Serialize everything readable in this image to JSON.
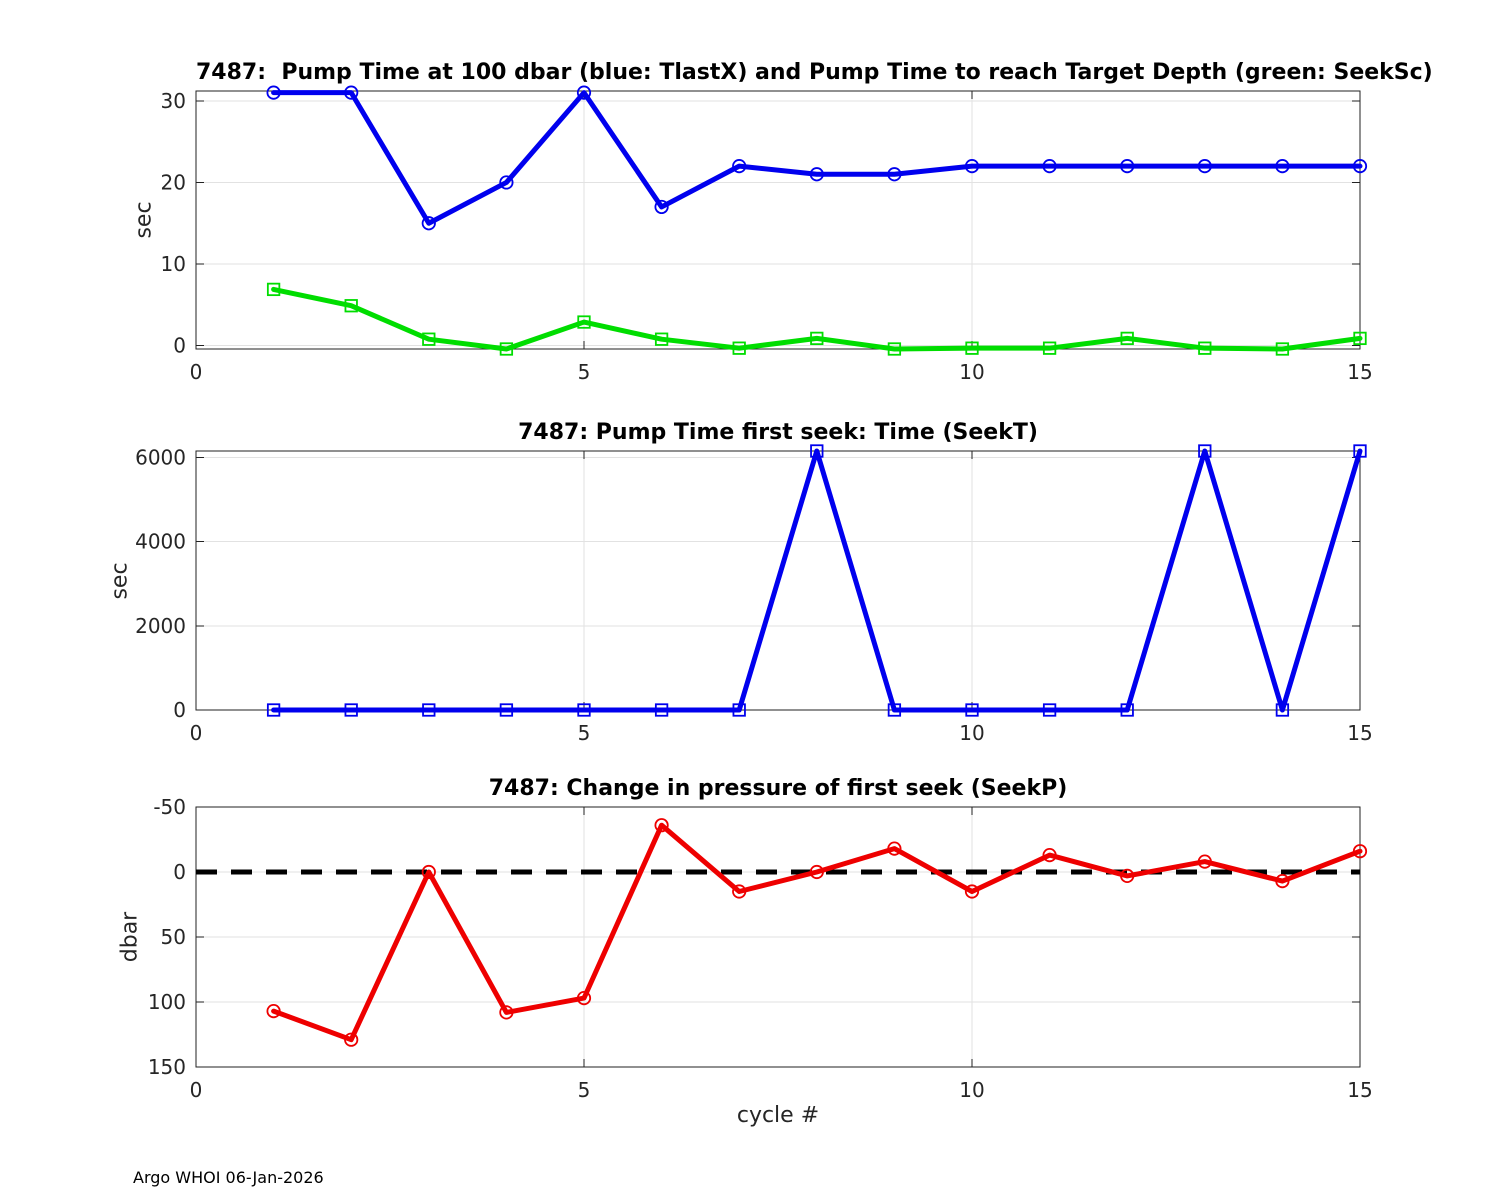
{
  "figure": {
    "xlabel": "cycle #",
    "footer": "Argo WHOI 06-Jan-2026",
    "background": "#ffffff",
    "axis_color": "#222222",
    "grid_color": "#e2e2e2",
    "tick_label_color": "#262626"
  },
  "chart_data": [
    {
      "type": "line",
      "title": "7487:  Pump Time at 100 dbar (blue: TlastX) and Pump Time to reach Target Depth (green: SeekSc)",
      "ylabel": "sec",
      "x": [
        1,
        2,
        3,
        4,
        5,
        6,
        7,
        8,
        9,
        10,
        11,
        12,
        13,
        14,
        15
      ],
      "series": [
        {
          "name": "TlastX",
          "color": "#0000ee",
          "marker": "circle",
          "values": [
            31,
            31,
            15,
            20,
            31,
            17,
            22,
            21,
            21,
            22,
            22,
            22,
            22,
            22,
            22
          ]
        },
        {
          "name": "SeekSc",
          "color": "#00dd00",
          "marker": "square",
          "values": [
            6.9,
            4.9,
            0.8,
            -0.4,
            2.9,
            0.8,
            -0.3,
            0.9,
            -0.4,
            -0.3,
            -0.3,
            0.9,
            -0.3,
            -0.4,
            0.9
          ]
        }
      ],
      "xlim": [
        0,
        15
      ],
      "ylim": [
        -0.4,
        31.2
      ],
      "xticks": [
        0,
        5,
        10,
        15
      ],
      "yticks": [
        0,
        10,
        20,
        30
      ],
      "grid": true,
      "legend": "none"
    },
    {
      "type": "line",
      "title": "7487: Pump Time first seek: Time (SeekT)",
      "ylabel": "sec",
      "x": [
        1,
        2,
        3,
        4,
        5,
        6,
        7,
        8,
        9,
        10,
        11,
        12,
        13,
        14,
        15
      ],
      "series": [
        {
          "name": "SeekT",
          "color": "#0000ee",
          "marker": "square",
          "values": [
            0,
            0,
            0,
            0,
            0,
            0,
            0,
            6150,
            0,
            0,
            0,
            0,
            6150,
            0,
            6150
          ]
        }
      ],
      "xlim": [
        0,
        15
      ],
      "ylim": [
        0,
        6150
      ],
      "xticks": [
        0,
        5,
        10,
        15
      ],
      "yticks": [
        0,
        2000,
        4000,
        6000
      ],
      "grid": true,
      "legend": "none"
    },
    {
      "type": "line",
      "title": "7487: Change in pressure of first seek (SeekP)",
      "ylabel": "dbar",
      "x": [
        1,
        2,
        3,
        4,
        5,
        6,
        7,
        8,
        9,
        10,
        11,
        12,
        13,
        14,
        15
      ],
      "series": [
        {
          "name": "SeekP",
          "color": "#ee0000",
          "marker": "circle",
          "values": [
            107,
            129,
            0,
            108,
            97,
            -36,
            15,
            0,
            -18,
            15,
            -13,
            3,
            -8,
            7,
            -16
          ]
        }
      ],
      "xlim": [
        0,
        15
      ],
      "ylim": [
        -50,
        150
      ],
      "y_reversed": true,
      "xticks": [
        0,
        5,
        10,
        15
      ],
      "yticks": [
        -50,
        0,
        50,
        100,
        150
      ],
      "grid": true,
      "legend": "none",
      "zero_line": {
        "style": "dashed",
        "color": "#000000",
        "value": 0
      }
    }
  ]
}
